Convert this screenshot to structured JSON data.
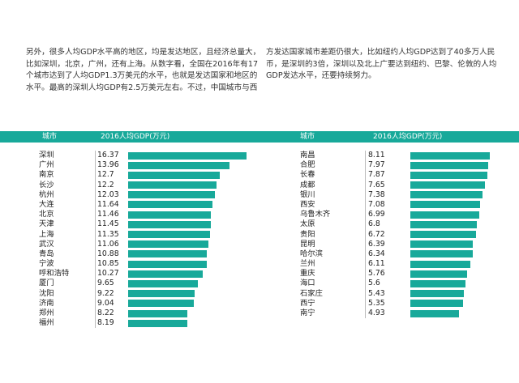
{
  "paragraph_left": "另外，很多人均GDP水平高的地区，均是发达地区，且经济总量大，比如深圳，北京，广州，还有上海。从数字看，全国在2016年有17个城市达到了人均GDP1.3万美元的水平，也就是发达国家和地区的水平。最高的深圳人均GDP有2.5万美元左右。不过，中国城市与西",
  "paragraph_right": "方发达国家城市差距仍很大，比如纽约人均GDP达到了40多万人民币，是深圳的3倍，深圳以及北上广要达到纽约、巴黎、伦敦的人均GDP发达水平，还要持续努力。",
  "colors": {
    "accent": "#18a99a"
  },
  "tables": [
    {
      "city_header": "城市",
      "value_header": "2016人均GDP(万元)",
      "max_value": 16.37,
      "rows": [
        {
          "city": "深圳",
          "value": "16.37"
        },
        {
          "city": "广州",
          "value": "13.96"
        },
        {
          "city": "南京",
          "value": "12.7"
        },
        {
          "city": "长沙",
          "value": "12.2"
        },
        {
          "city": "杭州",
          "value": "12.03"
        },
        {
          "city": "大连",
          "value": "11.64"
        },
        {
          "city": "北京",
          "value": "11.46"
        },
        {
          "city": "天津",
          "value": "11.45"
        },
        {
          "city": "上海",
          "value": "11.35"
        },
        {
          "city": "武汉",
          "value": "11.06"
        },
        {
          "city": "青岛",
          "value": "10.88"
        },
        {
          "city": "宁波",
          "value": "10.85"
        },
        {
          "city": "呼和浩特",
          "value": "10.27"
        },
        {
          "city": "厦门",
          "value": "9.65"
        },
        {
          "city": "沈阳",
          "value": "9.22"
        },
        {
          "city": "济南",
          "value": "9.04"
        },
        {
          "city": "郑州",
          "value": "8.22"
        },
        {
          "city": "福州",
          "value": "8.19"
        }
      ]
    },
    {
      "city_header": "城市",
      "value_header": "2016人均GDP(万元)",
      "max_value": 8.11,
      "rows": [
        {
          "city": "南昌",
          "value": "8.11"
        },
        {
          "city": "合肥",
          "value": "7.97"
        },
        {
          "city": "长春",
          "value": "7.87"
        },
        {
          "city": "成都",
          "value": "7.65"
        },
        {
          "city": "银川",
          "value": "7.38"
        },
        {
          "city": "西安",
          "value": "7.08"
        },
        {
          "city": "乌鲁木齐",
          "value": "6.99"
        },
        {
          "city": "太原",
          "value": "6.8"
        },
        {
          "city": "贵阳",
          "value": "6.72"
        },
        {
          "city": "昆明",
          "value": "6.39"
        },
        {
          "city": "哈尔滨",
          "value": "6.34"
        },
        {
          "city": "兰州",
          "value": "6.11"
        },
        {
          "city": "重庆",
          "value": "5.76"
        },
        {
          "city": "海口",
          "value": "5.6"
        },
        {
          "city": "石家庄",
          "value": "5.43"
        },
        {
          "city": "西宁",
          "value": "5.35"
        },
        {
          "city": "南宁",
          "value": "4.93"
        }
      ]
    }
  ]
}
